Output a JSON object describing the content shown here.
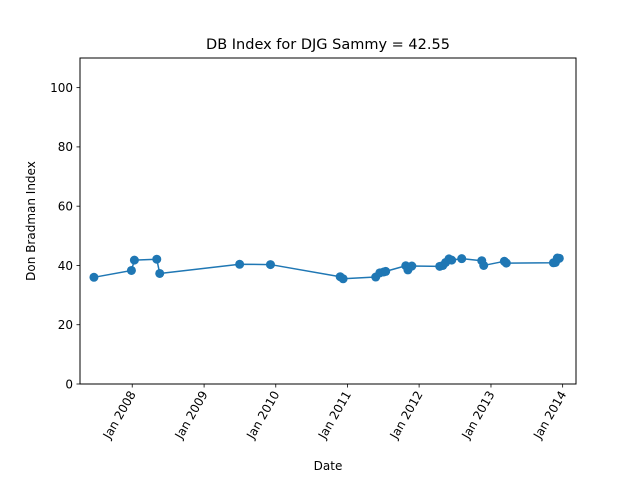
{
  "chart_data": {
    "type": "line",
    "title": "DB Index for DJG Sammy = 42.55",
    "xlabel": "Date",
    "ylabel": "Don Bradman Index",
    "ylim": [
      0,
      110
    ],
    "xlim": [
      "2007-04-10",
      "2014-03-10"
    ],
    "yticks": [
      0,
      20,
      40,
      60,
      80,
      100
    ],
    "xticks": [
      {
        "date": "2008-01-01",
        "label": "Jan 2008"
      },
      {
        "date": "2009-01-01",
        "label": "Jan 2009"
      },
      {
        "date": "2010-01-01",
        "label": "Jan 2010"
      },
      {
        "date": "2011-01-01",
        "label": "Jan 2011"
      },
      {
        "date": "2012-01-01",
        "label": "Jan 2012"
      },
      {
        "date": "2013-01-01",
        "label": "Jan 2013"
      },
      {
        "date": "2014-01-01",
        "label": "Jan 2014"
      }
    ],
    "grid": false,
    "color": "#1f77b4",
    "series": [
      {
        "x": [
          "2007-06-20",
          "2007-12-28",
          "2008-01-12",
          "2008-05-05",
          "2008-05-20",
          "2009-07-01",
          "2009-12-05",
          "2010-11-25",
          "2010-12-10",
          "2011-05-25",
          "2011-06-15",
          "2011-07-05",
          "2011-07-15",
          "2011-10-25",
          "2011-11-05",
          "2011-11-15",
          "2011-11-25",
          "2012-04-15",
          "2012-05-01",
          "2012-05-15",
          "2012-06-01",
          "2012-06-15",
          "2012-08-05",
          "2012-11-15",
          "2012-11-25",
          "2013-03-10",
          "2013-03-20",
          "2013-11-15",
          "2013-11-25",
          "2013-12-05",
          "2013-12-15"
        ],
        "y": [
          36.0,
          38.3,
          41.8,
          42.1,
          37.3,
          40.4,
          40.3,
          36.2,
          35.5,
          36.1,
          37.5,
          37.8,
          38.0,
          39.9,
          38.5,
          39.5,
          39.8,
          39.7,
          40.0,
          41.0,
          42.2,
          41.8,
          42.3,
          41.6,
          40.0,
          41.4,
          40.8,
          40.9,
          41.0,
          42.5,
          42.4
        ]
      }
    ]
  }
}
